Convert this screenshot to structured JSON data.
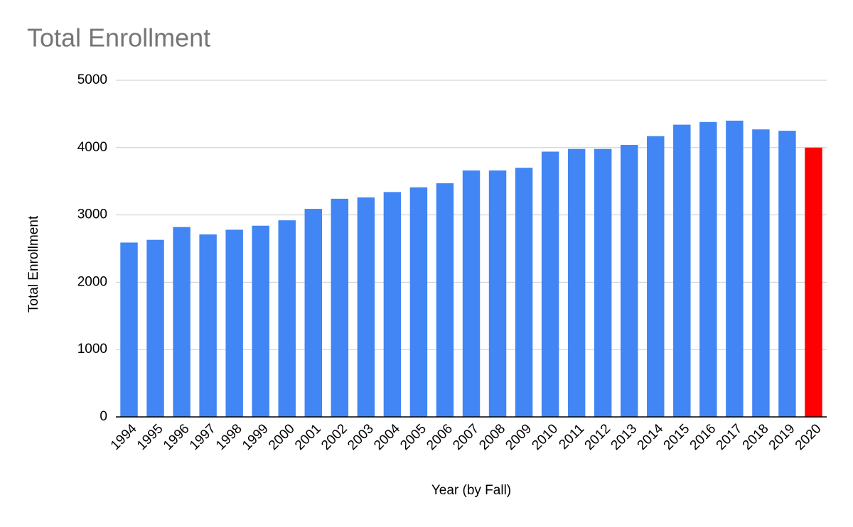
{
  "chart_data": {
    "type": "bar",
    "title": "Total Enrollment",
    "x_label": "Year (by Fall)",
    "y_label": "Total Enrollment",
    "categories": [
      "1994",
      "1995",
      "1996",
      "1997",
      "1998",
      "1999",
      "2000",
      "2001",
      "2002",
      "2003",
      "2004",
      "2005",
      "2006",
      "2007",
      "2008",
      "2009",
      "2010",
      "2011",
      "2012",
      "2013",
      "2014",
      "2015",
      "2016",
      "2017",
      "2018",
      "2019",
      "2020"
    ],
    "values": [
      2590,
      2630,
      2820,
      2710,
      2780,
      2840,
      2920,
      3090,
      3240,
      3260,
      3340,
      3410,
      3470,
      3660,
      3660,
      3700,
      3940,
      3980,
      3980,
      4040,
      4170,
      4340,
      4380,
      4400,
      4270,
      4250,
      4000
    ],
    "colors": [
      "#4285f4",
      "#4285f4",
      "#4285f4",
      "#4285f4",
      "#4285f4",
      "#4285f4",
      "#4285f4",
      "#4285f4",
      "#4285f4",
      "#4285f4",
      "#4285f4",
      "#4285f4",
      "#4285f4",
      "#4285f4",
      "#4285f4",
      "#4285f4",
      "#4285f4",
      "#4285f4",
      "#4285f4",
      "#4285f4",
      "#4285f4",
      "#4285f4",
      "#4285f4",
      "#4285f4",
      "#4285f4",
      "#4285f4",
      "#ff0000"
    ],
    "ylim": [
      0,
      5000
    ],
    "yticks": [
      0,
      1000,
      2000,
      3000,
      4000,
      5000
    ],
    "grid": true
  }
}
